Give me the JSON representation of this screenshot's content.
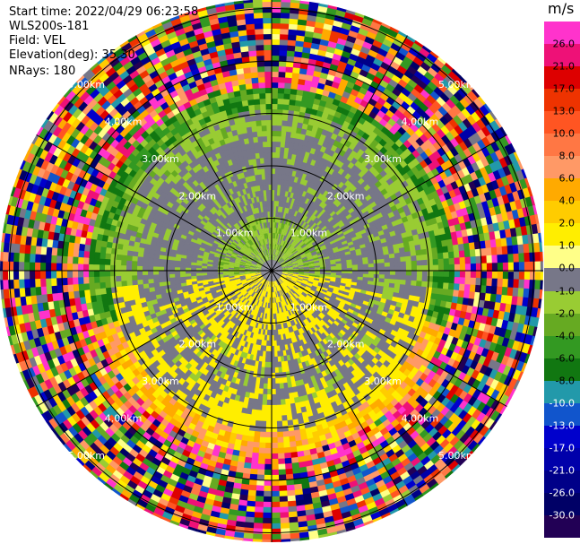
{
  "header": {
    "start_time": "Start time: 2022/04/29 06:23:58",
    "instrument": "WLS200s-181",
    "field": "Field: VEL",
    "elevation": "Elevation(deg): 35.30",
    "nrays": "NRays: 180"
  },
  "colorbar": {
    "unit": "m/s",
    "ticks": [
      "26.0",
      "21.0",
      "17.0",
      "13.0",
      "10.0",
      "8.0",
      "6.0",
      "4.0",
      "2.0",
      "1.0",
      "0.0",
      "-1.0",
      "-2.0",
      "-4.0",
      "-6.0",
      "-8.0",
      "-10.0",
      "-13.0",
      "-17.0",
      "-21.0",
      "-26.0",
      "-30.0"
    ],
    "colors": [
      "#ff33cc",
      "#ee1177",
      "#dd0000",
      "#ee3300",
      "#ff5522",
      "#ff7744",
      "#ff9966",
      "#ffaa00",
      "#ffcc00",
      "#ffee00",
      "#ffff88",
      "#777788",
      "#99cc33",
      "#66aa22",
      "#339922",
      "#117711",
      "#2299aa",
      "#1155cc",
      "#0000cc",
      "#0000aa",
      "#000088",
      "#000066",
      "#220055"
    ]
  },
  "range_labels": [
    "1.00km",
    "2.00km",
    "3.00km",
    "4.00km",
    "5.00km"
  ],
  "chart_data": {
    "type": "polar-ppi",
    "field": "VEL",
    "units": "m/s",
    "range_rings_km": [
      1.0,
      2.0,
      3.0,
      4.0,
      5.0
    ],
    "nrays": 180
  }
}
